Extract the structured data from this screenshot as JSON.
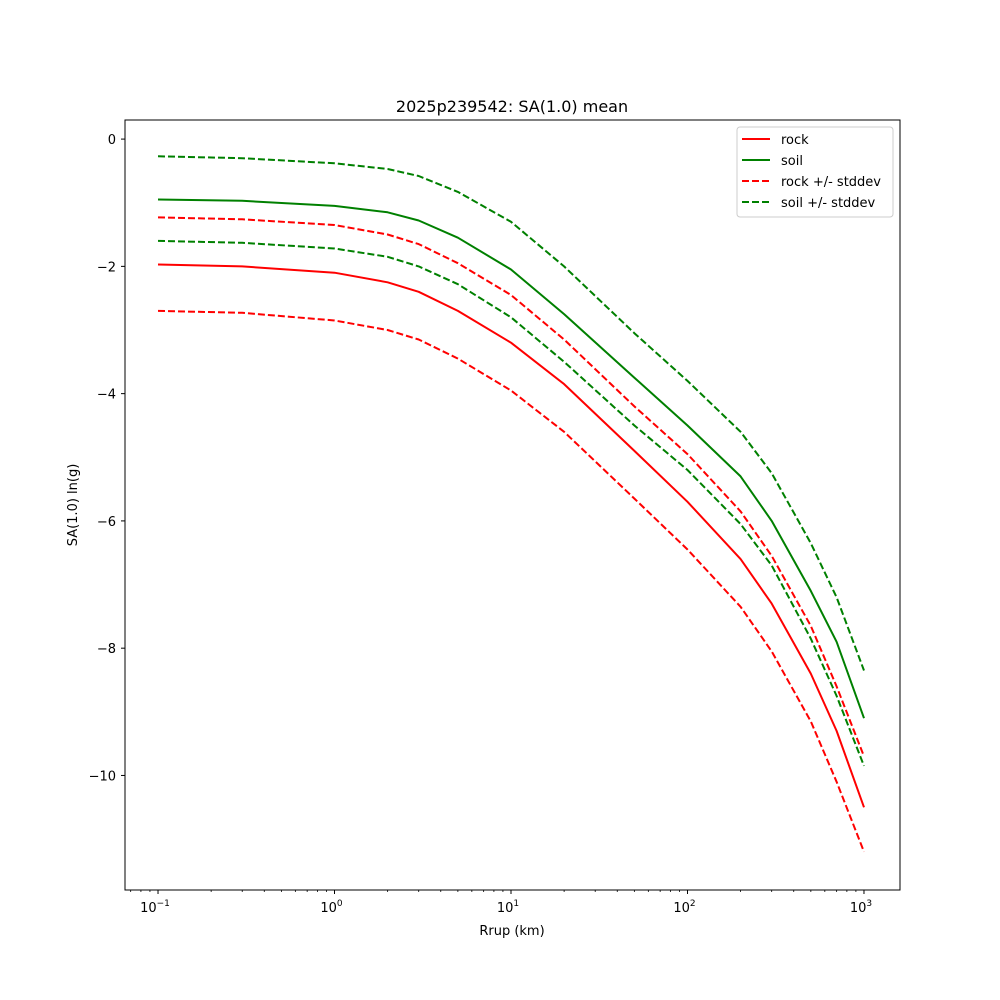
{
  "chart_data": {
    "type": "line",
    "title": "2025p239542: SA(1.0) mean",
    "xlabel": "Rrup (km)",
    "ylabel": "SA(1.0) ln(g)",
    "x_scale": "log",
    "xlim": [
      0.065,
      1600
    ],
    "ylim": [
      -11.8,
      0.3
    ],
    "x_ticks": [
      {
        "value": 0.1,
        "base": "10",
        "exp": "−1"
      },
      {
        "value": 1,
        "base": "10",
        "exp": "0"
      },
      {
        "value": 10,
        "base": "10",
        "exp": "1"
      },
      {
        "value": 100,
        "base": "10",
        "exp": "2"
      },
      {
        "value": 1000,
        "base": "10",
        "exp": "3"
      }
    ],
    "y_ticks": [
      {
        "value": 0,
        "label": "0"
      },
      {
        "value": -2,
        "label": "−2"
      },
      {
        "value": -4,
        "label": "−4"
      },
      {
        "value": -6,
        "label": "−6"
      },
      {
        "value": -8,
        "label": "−8"
      },
      {
        "value": -10,
        "label": "−10"
      }
    ],
    "grid": false,
    "legend_position": "top-right",
    "x": [
      0.1,
      0.3,
      1,
      2,
      3,
      5,
      10,
      20,
      50,
      100,
      200,
      300,
      500,
      700,
      1000
    ],
    "series": [
      {
        "name": "rock",
        "color": "#ff0000",
        "style": "solid",
        "values": [
          -1.97,
          -2.0,
          -2.1,
          -2.25,
          -2.4,
          -2.7,
          -3.2,
          -3.85,
          -4.9,
          -5.7,
          -6.6,
          -7.3,
          -8.4,
          -9.3,
          -10.5
        ]
      },
      {
        "name": "soil",
        "color": "#008000",
        "style": "solid",
        "values": [
          -0.95,
          -0.97,
          -1.05,
          -1.15,
          -1.28,
          -1.55,
          -2.05,
          -2.75,
          -3.75,
          -4.5,
          -5.3,
          -6.0,
          -7.1,
          -7.9,
          -9.1
        ]
      },
      {
        "name": "rock +/- stddev",
        "color": "#ff0000",
        "style": "dashed",
        "values": [
          -1.23,
          -1.26,
          -1.35,
          -1.5,
          -1.65,
          -1.95,
          -2.45,
          -3.15,
          -4.2,
          -4.95,
          -5.85,
          -6.55,
          -7.65,
          -8.6,
          -9.7
        ]
      },
      {
        "name": "",
        "color": "#ff0000",
        "style": "dashed",
        "legend": false,
        "values": [
          -2.7,
          -2.73,
          -2.85,
          -3.0,
          -3.15,
          -3.45,
          -3.95,
          -4.6,
          -5.65,
          -6.45,
          -7.35,
          -8.05,
          -9.15,
          -10.1,
          -11.2
        ]
      },
      {
        "name": "soil +/- stddev",
        "color": "#008000",
        "style": "dashed",
        "values": [
          -0.27,
          -0.3,
          -0.38,
          -0.47,
          -0.58,
          -0.83,
          -1.3,
          -2.0,
          -3.05,
          -3.8,
          -4.6,
          -5.25,
          -6.35,
          -7.2,
          -8.35
        ]
      },
      {
        "name": "",
        "color": "#008000",
        "style": "dashed",
        "legend": false,
        "values": [
          -1.6,
          -1.63,
          -1.72,
          -1.85,
          -2.0,
          -2.28,
          -2.8,
          -3.5,
          -4.5,
          -5.2,
          -6.05,
          -6.7,
          -7.85,
          -8.75,
          -9.85
        ]
      }
    ]
  }
}
